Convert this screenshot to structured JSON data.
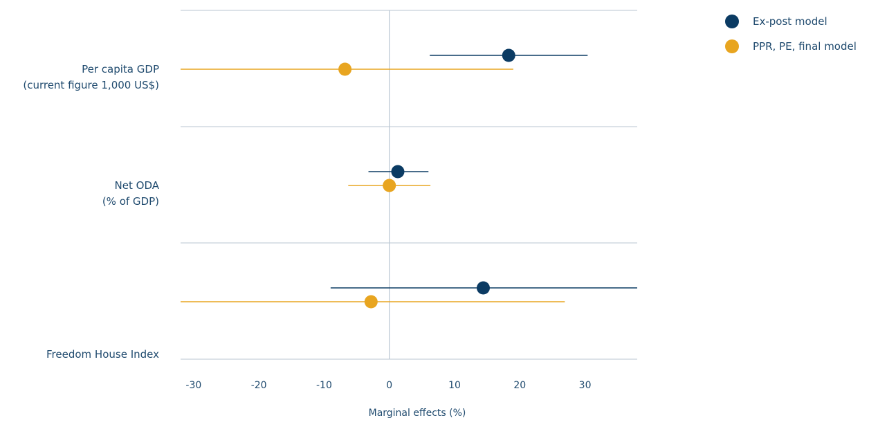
{
  "chart_data": {
    "type": "scatter",
    "title": "",
    "xlabel": "Marginal effects (%)",
    "ylabel": "",
    "xlim": [
      -32,
      38
    ],
    "xticks": [
      -30,
      -20,
      -10,
      0,
      10,
      20,
      30
    ],
    "grid": true,
    "legend_position": "top-right",
    "categories": [
      {
        "lines": [
          "Per capita GDP",
          "(current figure 1,000 US$)"
        ]
      },
      {
        "lines": [
          "Net ODA",
          "(% of GDP)"
        ]
      },
      {
        "lines": [
          "Freedom House Index"
        ]
      }
    ],
    "series": [
      {
        "name": "Ex-post model",
        "color": "#0b3b63",
        "points": [
          {
            "estimate": 18.3,
            "low": 6.2,
            "high": 30.4
          },
          {
            "estimate": 1.3,
            "low": -3.2,
            "high": 6.0
          },
          {
            "estimate": 14.4,
            "low": -9.0,
            "high": 38.0
          }
        ]
      },
      {
        "name": "PPR, PE, final model",
        "color": "#e8a520",
        "points": [
          {
            "estimate": -6.8,
            "low": -32.0,
            "high": 19.0
          },
          {
            "estimate": 0.0,
            "low": -6.3,
            "high": 6.3
          },
          {
            "estimate": -2.8,
            "low": -32.0,
            "high": 26.9
          }
        ]
      }
    ]
  }
}
